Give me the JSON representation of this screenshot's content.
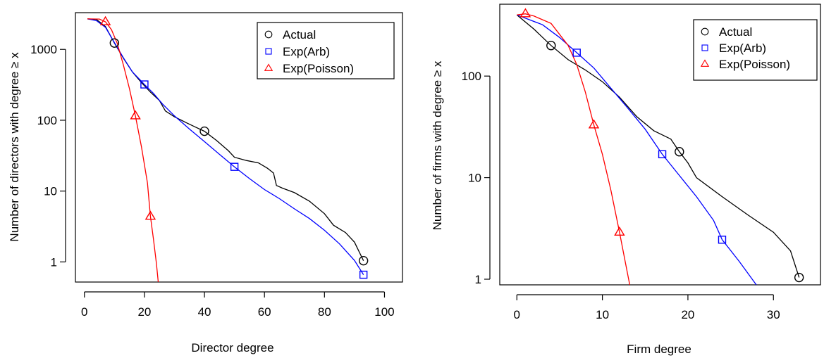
{
  "chart_data": [
    {
      "type": "line",
      "xlabel": "Director degree",
      "ylabel": "Number of directors with degree ≥ x",
      "xlim": [
        -3,
        106
      ],
      "ylim_log": [
        0.52,
        3300
      ],
      "y_scale": "log",
      "xticks": [
        0,
        20,
        40,
        60,
        80,
        100
      ],
      "yticks": [
        1,
        10,
        100,
        1000
      ],
      "grid": false,
      "legend": {
        "position": "top-right"
      },
      "series": [
        {
          "name": "Actual",
          "color": "#000000",
          "marker": "circle",
          "points": [
            [
              1,
              2700
            ],
            [
              4,
              2650
            ],
            [
              7,
              2100
            ],
            [
              10,
              1230
            ],
            [
              13,
              750
            ],
            [
              16,
              480
            ],
            [
              19,
              340
            ],
            [
              22,
              250
            ],
            [
              25,
              190
            ],
            [
              27,
              135
            ],
            [
              30,
              112
            ],
            [
              34,
              92
            ],
            [
              37,
              80
            ],
            [
              40,
              70
            ],
            [
              44,
              52
            ],
            [
              48,
              37
            ],
            [
              50,
              30
            ],
            [
              54,
              27
            ],
            [
              58,
              25
            ],
            [
              61,
              21
            ],
            [
              63,
              18
            ],
            [
              64,
              12
            ],
            [
              66,
              11
            ],
            [
              70,
              9.5
            ],
            [
              75,
              7.2
            ],
            [
              80,
              4.8
            ],
            [
              83,
              3.3
            ],
            [
              87,
              2.6
            ],
            [
              90,
              1.9
            ],
            [
              93,
              1.04
            ]
          ],
          "markers": [
            [
              10,
              1230
            ],
            [
              40,
              70
            ],
            [
              93,
              1.04
            ]
          ]
        },
        {
          "name": "Exp(Arb)",
          "color": "#0000ff",
          "marker": "square",
          "points": [
            [
              1,
              2700
            ],
            [
              4,
              2550
            ],
            [
              7,
              2050
            ],
            [
              10,
              1250
            ],
            [
              13,
              760
            ],
            [
              16,
              480
            ],
            [
              20,
              320
            ],
            [
              23,
              240
            ],
            [
              26,
              170
            ],
            [
              30,
              115
            ],
            [
              35,
              75
            ],
            [
              40,
              50
            ],
            [
              45,
              33
            ],
            [
              50,
              22
            ],
            [
              55,
              15
            ],
            [
              60,
              10.5
            ],
            [
              65,
              7.8
            ],
            [
              70,
              5.6
            ],
            [
              75,
              4.1
            ],
            [
              80,
              2.8
            ],
            [
              85,
              1.8
            ],
            [
              90,
              1.05
            ],
            [
              93,
              0.66
            ]
          ],
          "markers": [
            [
              20,
              320
            ],
            [
              50,
              22
            ],
            [
              93,
              0.66
            ]
          ]
        },
        {
          "name": "Exp(Poisson)",
          "color": "#ff0000",
          "marker": "triangle",
          "points": [
            [
              1,
              2700
            ],
            [
              5,
              2680
            ],
            [
              7,
              2450
            ],
            [
              9,
              1900
            ],
            [
              11,
              1200
            ],
            [
              13,
              600
            ],
            [
              15,
              280
            ],
            [
              17,
              115
            ],
            [
              19,
              42
            ],
            [
              21,
              13
            ],
            [
              22,
              4.4
            ],
            [
              23,
              2.1
            ],
            [
              24,
              0.95
            ],
            [
              24.6,
              0.52
            ]
          ],
          "markers": [
            [
              7,
              2450
            ],
            [
              17,
              115
            ],
            [
              22,
              4.4
            ]
          ]
        }
      ]
    },
    {
      "type": "line",
      "xlabel": "Firm degree",
      "ylabel": "Number of firms with degree ≥ x",
      "xlim": [
        -2,
        35.5
      ],
      "ylim_log": [
        0.88,
        510
      ],
      "y_scale": "log",
      "xticks": [
        0,
        10,
        20,
        30
      ],
      "yticks": [
        1,
        10,
        100
      ],
      "grid": false,
      "legend": {
        "position": "top-right"
      },
      "series": [
        {
          "name": "Actual",
          "color": "#000000",
          "marker": "circle",
          "points": [
            [
              0,
              400
            ],
            [
              2,
              290
            ],
            [
              4,
              200
            ],
            [
              6,
              145
            ],
            [
              8,
              115
            ],
            [
              10,
              88
            ],
            [
              12,
              62
            ],
            [
              14,
              40
            ],
            [
              16,
              29
            ],
            [
              18,
              24
            ],
            [
              19,
              18
            ],
            [
              20,
              14
            ],
            [
              21,
              10
            ],
            [
              24,
              6.5
            ],
            [
              27,
              4.3
            ],
            [
              30,
              2.9
            ],
            [
              32,
              1.9
            ],
            [
              33,
              1.04
            ]
          ],
          "markers": [
            [
              4,
              200
            ],
            [
              19,
              18
            ],
            [
              33,
              1.04
            ]
          ]
        },
        {
          "name": "Exp(Arb)",
          "color": "#0000ff",
          "marker": "square",
          "points": [
            [
              0,
              400
            ],
            [
              3,
              320
            ],
            [
              5,
              240
            ],
            [
              7,
              170
            ],
            [
              9,
              120
            ],
            [
              11,
              76
            ],
            [
              13,
              48
            ],
            [
              15,
              30
            ],
            [
              17,
              17
            ],
            [
              19,
              10.5
            ],
            [
              21,
              6.5
            ],
            [
              23,
              3.8
            ],
            [
              24,
              2.45
            ],
            [
              26,
              1.5
            ],
            [
              28,
              0.88
            ]
          ],
          "markers": [
            [
              7,
              170
            ],
            [
              17,
              17
            ],
            [
              24,
              2.45
            ]
          ]
        },
        {
          "name": "Exp(Poisson)",
          "color": "#ff0000",
          "marker": "triangle",
          "points": [
            [
              0,
              400
            ],
            [
              1,
              410
            ],
            [
              2,
              390
            ],
            [
              4,
              330
            ],
            [
              6,
              200
            ],
            [
              7,
              130
            ],
            [
              8,
              70
            ],
            [
              9,
              33
            ],
            [
              10,
              17
            ],
            [
              11,
              7.5
            ],
            [
              12,
              2.9
            ],
            [
              12.6,
              1.6
            ],
            [
              13.2,
              0.88
            ]
          ],
          "markers": [
            [
              1,
              410
            ],
            [
              9,
              33
            ],
            [
              12,
              2.9
            ]
          ]
        }
      ]
    }
  ]
}
